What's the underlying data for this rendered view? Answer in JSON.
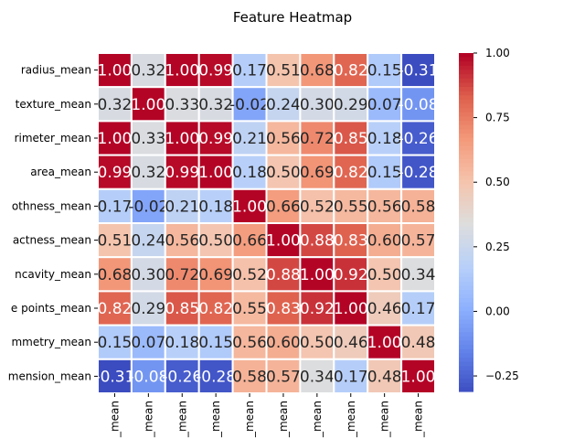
{
  "chart_data": {
    "type": "heatmap",
    "title": "Feature Heatmap",
    "row_labels": [
      "radius_mean",
      "texture_mean",
      "perimeter_mean",
      "area_mean",
      "smoothness_mean",
      "compactness_mean",
      "concavity_mean",
      "concave points_mean",
      "symmetry_mean",
      "fractal_dimension_mean"
    ],
    "row_labels_visible": [
      "radius_mean",
      "texture_mean",
      "rimeter_mean",
      "area_mean",
      "othness_mean",
      "actness_mean",
      "ncavity_mean",
      "e points_mean",
      "mmetry_mean",
      "mension_mean"
    ],
    "col_labels_visible": [
      "_mean",
      "_mean",
      "_mean",
      "_mean",
      "_mean",
      "_mean",
      "_mean",
      "_mean",
      "_mean",
      "_mean"
    ],
    "values": [
      [
        1.0,
        0.32,
        1.0,
        0.99,
        0.17,
        0.51,
        0.68,
        0.82,
        0.15,
        -0.31
      ],
      [
        0.32,
        1.0,
        0.33,
        0.32,
        -0.02,
        0.24,
        0.3,
        0.29,
        0.07,
        -0.08
      ],
      [
        1.0,
        0.33,
        1.0,
        0.99,
        0.21,
        0.56,
        0.72,
        0.85,
        0.18,
        -0.26
      ],
      [
        0.99,
        0.32,
        0.99,
        1.0,
        0.18,
        0.5,
        0.69,
        0.82,
        0.15,
        -0.28
      ],
      [
        0.17,
        -0.02,
        0.21,
        0.18,
        1.0,
        0.66,
        0.52,
        0.55,
        0.56,
        0.58
      ],
      [
        0.51,
        0.24,
        0.56,
        0.5,
        0.66,
        1.0,
        0.88,
        0.83,
        0.6,
        0.57
      ],
      [
        0.68,
        0.3,
        0.72,
        0.69,
        0.52,
        0.88,
        1.0,
        0.92,
        0.5,
        0.34
      ],
      [
        0.82,
        0.29,
        0.85,
        0.82,
        0.55,
        0.83,
        0.92,
        1.0,
        0.46,
        0.17
      ],
      [
        0.15,
        0.07,
        0.18,
        0.15,
        0.56,
        0.6,
        0.5,
        0.46,
        1.0,
        0.48
      ],
      [
        -0.31,
        -0.08,
        -0.26,
        -0.28,
        0.58,
        0.57,
        0.34,
        0.17,
        0.48,
        1.0
      ]
    ],
    "cell_text": [
      [
        "1.00",
        "0.32",
        "1.00",
        "0.99",
        "0.17",
        "0.51",
        "0.68",
        "0.82",
        "0.15",
        "-0.31"
      ],
      [
        "0.32",
        "1.00",
        "0.33",
        "0.32",
        "-0.02",
        "0.24",
        "0.30",
        "0.29",
        "0.07",
        "-0.08"
      ],
      [
        "1.00",
        "0.33",
        "1.00",
        "0.99",
        "0.21",
        "0.56",
        "0.72",
        "0.85",
        "0.18",
        "-0.26"
      ],
      [
        "0.99",
        "0.32",
        "0.99",
        "1.00",
        "0.18",
        "0.50",
        "0.69",
        "0.82",
        "0.15",
        "-0.28"
      ],
      [
        "0.17",
        "-0.02",
        "0.21",
        "0.18",
        "1.00",
        "0.66",
        "0.52",
        "0.55",
        "0.56",
        "0.58"
      ],
      [
        "0.51",
        "0.24",
        "0.56",
        "0.50",
        "0.66",
        "1.00",
        "0.88",
        "0.83",
        "0.60",
        "0.57"
      ],
      [
        "0.68",
        "0.30",
        "0.72",
        "0.69",
        "0.52",
        "0.88",
        "1.00",
        "0.92",
        "0.50",
        "0.34"
      ],
      [
        "0.82",
        "0.29",
        "0.85",
        "0.82",
        "0.55",
        "0.83",
        "0.92",
        "1.00",
        "0.46",
        "0.17"
      ],
      [
        "0.15",
        "0.07",
        "0.18",
        "0.15",
        "0.56",
        "0.60",
        "0.50",
        "0.46",
        "1.00",
        "0.48"
      ],
      [
        "-0.31",
        "-0.08",
        "-0.26",
        "-0.28",
        "0.58",
        "0.57",
        "0.34",
        "0.17",
        "0.48",
        "1.00"
      ]
    ],
    "colormap": "coolwarm",
    "vmin": -0.31,
    "vmax": 1.0,
    "colorbar_ticks": [
      1.0,
      0.75,
      0.5,
      0.25,
      0.0,
      -0.25
    ],
    "colorbar_tick_labels": [
      "1.00",
      "0.75",
      "0.50",
      "0.25",
      "0.00",
      "−0.25"
    ],
    "grid": false,
    "legend": "colorbar-right"
  }
}
